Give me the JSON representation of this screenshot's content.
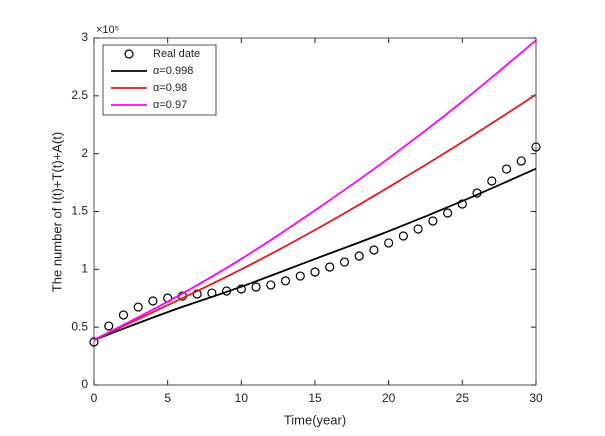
{
  "chart_data": {
    "type": "line",
    "xlabel": "Time(year)",
    "ylabel": "The number of I(t)+T(t)+A(t)",
    "y_multiplier": "×10⁵",
    "xlim": [
      0,
      30
    ],
    "xticks": [
      0,
      5,
      10,
      15,
      20,
      25,
      30
    ],
    "ylim": [
      0,
      3
    ],
    "yticks": [
      0,
      0.5,
      1,
      1.5,
      2,
      2.5,
      3
    ],
    "grid": false,
    "legend": "upper left",
    "series": [
      {
        "name": "Real date",
        "color": "#000000",
        "marker": "circle",
        "x": [
          0,
          1,
          2,
          3,
          4,
          5,
          6,
          7,
          8,
          9,
          10,
          11,
          12,
          13,
          14,
          15,
          16,
          17,
          18,
          19,
          20,
          21,
          22,
          23,
          24,
          25,
          26,
          27,
          28,
          29,
          30
        ],
        "values": [
          0.372,
          0.51,
          0.605,
          0.674,
          0.726,
          0.752,
          0.769,
          0.787,
          0.795,
          0.813,
          0.83,
          0.847,
          0.865,
          0.9,
          0.942,
          0.977,
          1.02,
          1.063,
          1.115,
          1.167,
          1.228,
          1.288,
          1.349,
          1.418,
          1.487,
          1.565,
          1.66,
          1.764,
          1.867,
          1.937,
          2.058
        ]
      },
      {
        "name": "α=0.998",
        "color": "#000000",
        "x": [
          0,
          5,
          10,
          15,
          20,
          25,
          30
        ],
        "values": [
          0.39,
          0.63,
          0.85,
          1.09,
          1.33,
          1.59,
          1.87
        ]
      },
      {
        "name": "α=0.98",
        "color": "#e41a1c",
        "x": [
          0,
          5,
          10,
          15,
          20,
          25,
          30
        ],
        "values": [
          0.39,
          0.69,
          1.0,
          1.34,
          1.71,
          2.1,
          2.51
        ]
      },
      {
        "name": "α=0.97",
        "color": "#ff00ff",
        "x": [
          0,
          5,
          10,
          15,
          20,
          25,
          30
        ],
        "values": [
          0.39,
          0.72,
          1.09,
          1.51,
          1.96,
          2.45,
          2.98
        ]
      }
    ]
  }
}
